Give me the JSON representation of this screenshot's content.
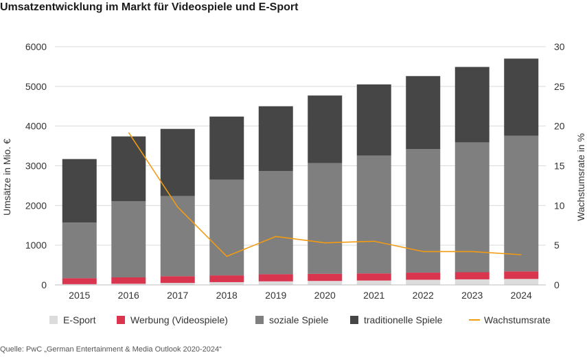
{
  "title": "Umsatzentwicklung im Markt für Videospiele und E-Sport",
  "source": "Quelle: PwC „German Entertainment & Media Outlook 2020-2024“",
  "colors": {
    "esport": "#dcdcdc",
    "werbung": "#d9354e",
    "sozial": "#7f7f7f",
    "traditionell": "#464646",
    "wachstum": "#f29b12",
    "grid": "#d9d9d9"
  },
  "chart_data": {
    "type": "bar",
    "stacked": true,
    "categories": [
      "2015",
      "2016",
      "2017",
      "2018",
      "2019",
      "2020",
      "2021",
      "2022",
      "2023",
      "2024"
    ],
    "series": [
      {
        "name": "E-Sport",
        "values": [
          20,
          30,
          50,
          70,
          90,
          100,
          110,
          130,
          140,
          150
        ]
      },
      {
        "name": "Werbung (Videospiele)",
        "values": [
          150,
          160,
          170,
          170,
          180,
          180,
          180,
          180,
          180,
          190
        ]
      },
      {
        "name": "soziale Spiele",
        "values": [
          1400,
          1920,
          2020,
          2410,
          2600,
          2790,
          2970,
          3110,
          3270,
          3420
        ]
      },
      {
        "name": "traditionelle Spiele",
        "values": [
          1600,
          1630,
          1690,
          1590,
          1630,
          1700,
          1790,
          1840,
          1900,
          1940
        ]
      }
    ],
    "line_series": {
      "name": "Wachstumsrate",
      "axis": "right",
      "x": [
        "2016",
        "2017",
        "2018",
        "2019",
        "2020",
        "2021",
        "2022",
        "2023",
        "2024"
      ],
      "values": [
        19.2,
        9.8,
        3.6,
        6.1,
        5.3,
        5.5,
        4.2,
        4.2,
        3.8
      ]
    },
    "ylabel": "Umsätze in Mio. €",
    "y2label": "Wachstumsrate in %",
    "ylim": [
      0,
      6000
    ],
    "y2lim": [
      0,
      30
    ],
    "yticks": [
      "0",
      "1000",
      "2000",
      "3000",
      "4000",
      "5000",
      "6000"
    ],
    "y2ticks": [
      "0",
      "5",
      "10",
      "15",
      "20",
      "25",
      "30"
    ],
    "grid": true,
    "legend_position": "bottom"
  }
}
